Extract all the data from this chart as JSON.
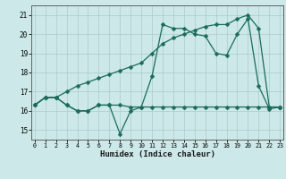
{
  "xlabel": "Humidex (Indice chaleur)",
  "bg_color": "#cce8e8",
  "grid_color": "#aacccc",
  "line_color": "#1a6b5a",
  "x_ticks": [
    0,
    1,
    2,
    3,
    4,
    5,
    6,
    7,
    8,
    9,
    10,
    11,
    12,
    13,
    14,
    15,
    16,
    17,
    18,
    19,
    20,
    21,
    22,
    23
  ],
  "y_ticks": [
    15,
    16,
    17,
    18,
    19,
    20,
    21
  ],
  "xlim": [
    -0.3,
    23.3
  ],
  "ylim": [
    14.5,
    21.5
  ],
  "series1": [
    16.3,
    16.7,
    16.7,
    16.3,
    16.0,
    16.0,
    16.3,
    16.3,
    16.3,
    16.2,
    16.2,
    16.2,
    16.2,
    16.2,
    16.2,
    16.2,
    16.2,
    16.2,
    16.2,
    16.2,
    16.2,
    16.2,
    16.2,
    16.2
  ],
  "series2": [
    16.3,
    16.7,
    16.7,
    16.3,
    16.0,
    16.0,
    16.3,
    16.3,
    14.8,
    16.0,
    16.2,
    17.8,
    20.5,
    20.3,
    20.3,
    20.0,
    19.9,
    19.0,
    18.9,
    20.0,
    20.8,
    17.3,
    16.1,
    16.2
  ],
  "series3": [
    16.3,
    16.7,
    16.7,
    17.0,
    17.3,
    17.5,
    17.7,
    17.9,
    18.1,
    18.3,
    18.5,
    19.0,
    19.5,
    19.8,
    20.0,
    20.2,
    20.4,
    20.5,
    20.5,
    20.8,
    21.0,
    20.3,
    16.2,
    16.2
  ]
}
